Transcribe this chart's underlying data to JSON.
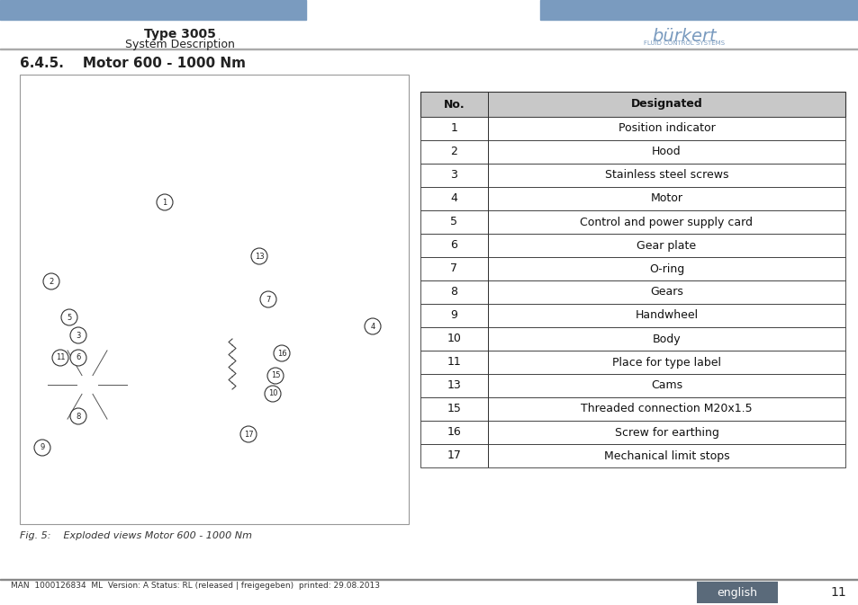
{
  "page_bg": "#ffffff",
  "header_bar_color": "#7a9bbf",
  "header_text_title": "Type 3005",
  "header_text_subtitle": "System Description",
  "header_text_color": "#222222",
  "section_title": "6.4.5.    Motor 600 - 1000 Nm",
  "section_title_color": "#222222",
  "table_header_bg": "#c8c8c8",
  "table_row_bg": "#ffffff",
  "table_border_color": "#333333",
  "table_numbers": [
    "1",
    "2",
    "3",
    "4",
    "5",
    "6",
    "7",
    "8",
    "9",
    "10",
    "11",
    "13",
    "15",
    "16",
    "17"
  ],
  "table_designations": [
    "Position indicator",
    "Hood",
    "Stainless steel screws",
    "Motor",
    "Control and power supply card",
    "Gear plate",
    "O-ring",
    "Gears",
    "Handwheel",
    "Body",
    "Place for type label",
    "Cams",
    "Threaded connection M20x1.5",
    "Screw for earthing",
    "Mechanical limit stops"
  ],
  "fig_caption": "Fig. 5:    Exploded views Motor 600 - 1000 Nm",
  "footer_text": "MAN  1000126834  ML  Version: A Status: RL (released | freigegeben)  printed: 29.08.2013",
  "footer_lang": "english",
  "footer_page": "11",
  "footer_lang_bg": "#5a6a7a",
  "footer_lang_text": "#ffffff",
  "diagram_border_color": "#999999",
  "diagram_bg": "#ffffff"
}
